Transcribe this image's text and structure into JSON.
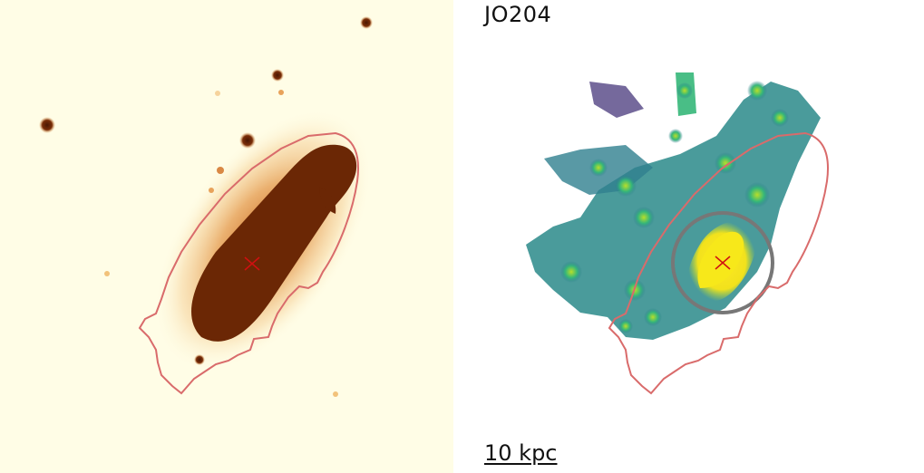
{
  "galaxy_name": "JO204",
  "scale_bar": "10 kpc",
  "colors": {
    "background_left": "#fffde6",
    "core": "#6b2705",
    "halo": "#e39a52",
    "contour": "#d96b6b",
    "ring": "#777777",
    "marker": "#d01010",
    "map_low": "#3b2a72",
    "map_mid": "#2a8a8a",
    "map_high": "#f2e21c"
  },
  "panels": [
    {
      "name": "optical-image",
      "colormap": "orange-brown"
    },
    {
      "name": "emission-map",
      "colormap": "viridis"
    }
  ]
}
